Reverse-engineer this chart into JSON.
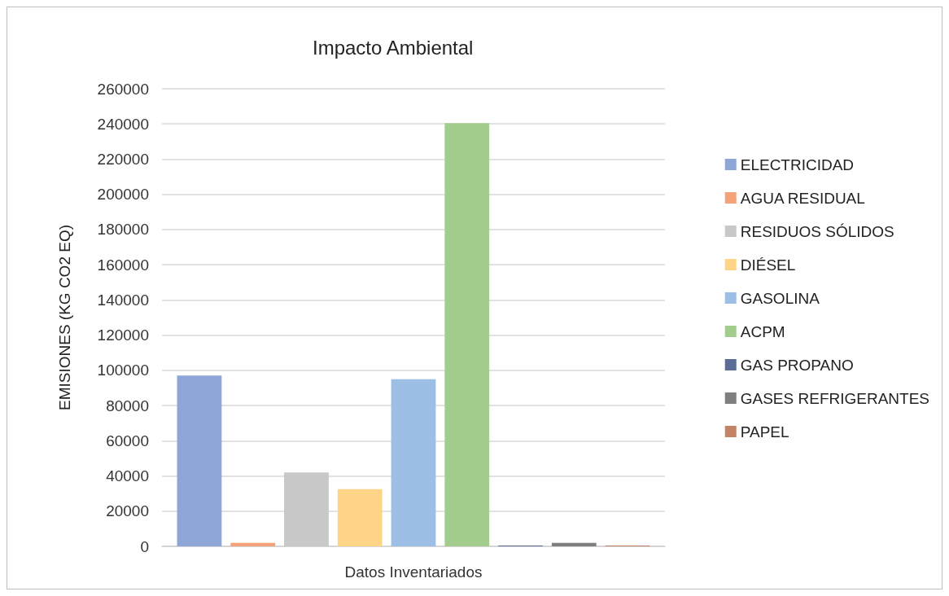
{
  "chart_data": {
    "type": "bar",
    "title": "Impacto Ambiental",
    "ylabel": "EMISIONES (KG CO2 EQ)",
    "categories": [
      "Datos Inventariados"
    ],
    "series": [
      {
        "name": "ELECTRICIDAD",
        "color": "#8fa6d9",
        "values": [
          97000
        ]
      },
      {
        "name": "AGUA RESIDUAL",
        "color": "#f4a27a",
        "values": [
          2000
        ]
      },
      {
        "name": "RESIDUOS SÓLIDOS",
        "color": "#c8c8c8",
        "values": [
          42000
        ]
      },
      {
        "name": "DIÉSEL",
        "color": "#fed586",
        "values": [
          32500
        ]
      },
      {
        "name": "GASOLINA",
        "color": "#9dbfe5",
        "values": [
          95000
        ]
      },
      {
        "name": "ACPM",
        "color": "#a3cd8c",
        "values": [
          240500
        ]
      },
      {
        "name": "GAS PROPANO",
        "color": "#5b6d95",
        "values": [
          500
        ]
      },
      {
        "name": "GASES REFRIGERANTES",
        "color": "#7f7f7f",
        "values": [
          2000
        ]
      },
      {
        "name": "PAPEL",
        "color": "#c38366",
        "values": [
          500
        ]
      }
    ],
    "ylim": [
      0,
      260000
    ],
    "yticks": [
      0,
      20000,
      40000,
      60000,
      80000,
      100000,
      120000,
      140000,
      160000,
      180000,
      200000,
      220000,
      240000,
      260000
    ],
    "grid": "y",
    "legend": "right"
  }
}
